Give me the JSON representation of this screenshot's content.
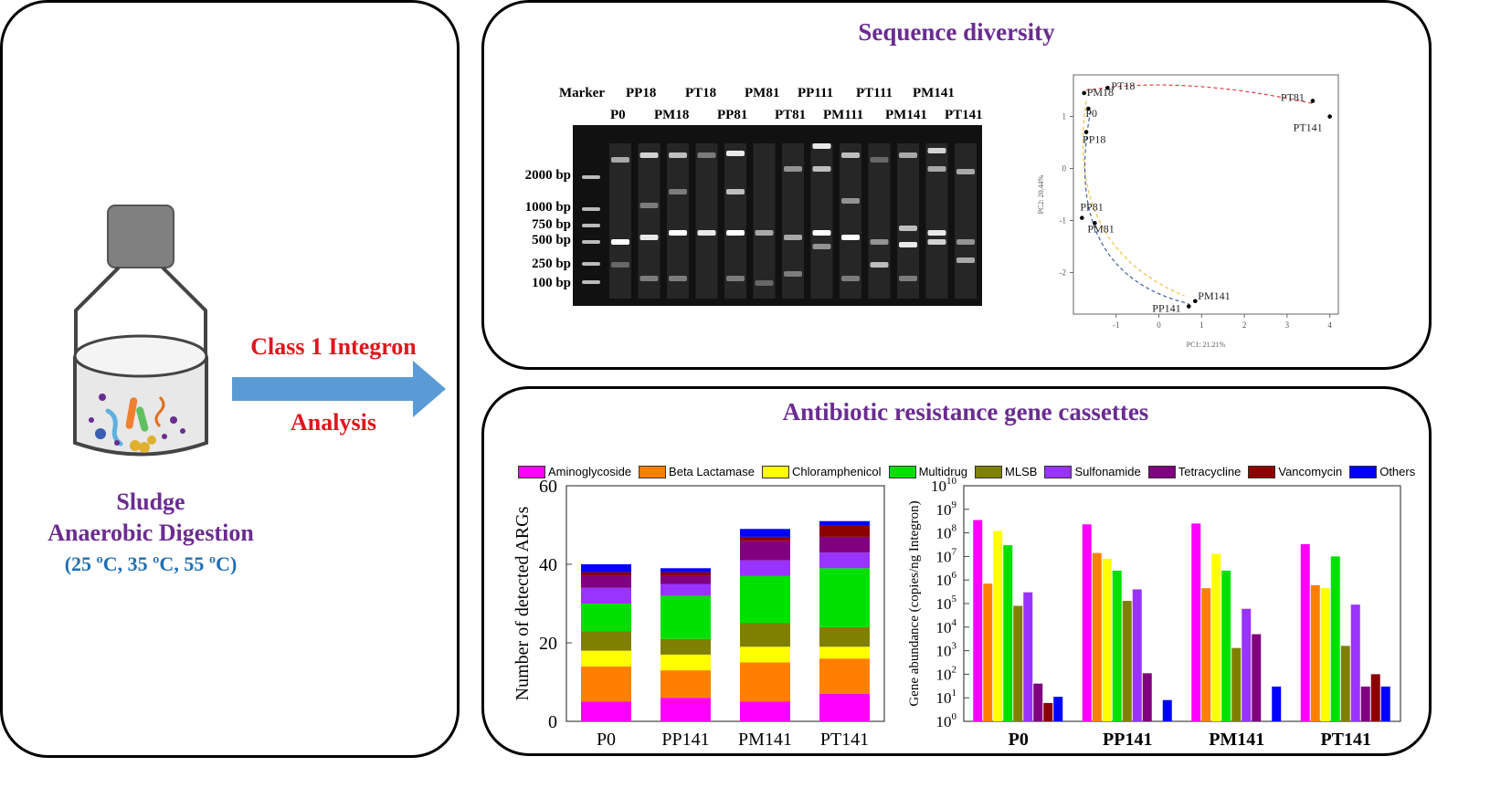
{
  "left": {
    "sludge_line1": "Sludge",
    "sludge_line2": "Anaerobic Digestion",
    "temps": "(25 ºC, 35 ºC, 55 ºC)",
    "arrow_top": "Class 1 Integron",
    "arrow_bottom": "Analysis",
    "colors": {
      "purple": "#6b2c91",
      "blue": "#1f6fb5",
      "red": "#e0151d",
      "arrow": "#5b9bd5"
    }
  },
  "sequence": {
    "title": "Sequence diversity",
    "gel": {
      "top_labels": [
        "Marker",
        "PP18",
        "PT18",
        "PM81",
        "PP111",
        "PT111",
        "PM141"
      ],
      "bottom_labels": [
        "P0",
        "PM18",
        "PP81",
        "PT81",
        "PM111",
        "PM141",
        "PT141"
      ],
      "bp_labels": [
        "2000 bp",
        "1000 bp",
        "750 bp",
        "500 bp",
        "250 bp",
        "100 bp"
      ]
    },
    "pca": {
      "xlabel": "PC1: 21.21%",
      "ylabel": "PC2: 20.44%",
      "xticks": [
        "-1",
        "0",
        "1",
        "2",
        "3",
        "4"
      ],
      "yticks": [
        "1",
        "0",
        "-1",
        "-2"
      ],
      "points": [
        {
          "label": "PT18",
          "x": -1.2,
          "y": 1.55
        },
        {
          "label": "PM18",
          "x": -1.75,
          "y": 1.45
        },
        {
          "label": "P0",
          "x": -1.65,
          "y": 1.15
        },
        {
          "label": "PP18",
          "x": -1.7,
          "y": 0.7
        },
        {
          "label": "PT81",
          "x": 3.6,
          "y": 1.3
        },
        {
          "label": "PT141",
          "x": 4.0,
          "y": 1.0
        },
        {
          "label": "PP81",
          "x": -1.8,
          "y": -0.95
        },
        {
          "label": "PM81",
          "x": -1.5,
          "y": -1.05
        },
        {
          "label": "PM141",
          "x": 0.85,
          "y": -2.55
        },
        {
          "label": "PP141",
          "x": 0.7,
          "y": -2.65
        }
      ]
    }
  },
  "arg": {
    "title": "Antibiotic resistance gene cassettes",
    "legend": [
      {
        "name": "Aminoglycoside",
        "color": "#ff00ff"
      },
      {
        "name": "Beta Lactamase",
        "color": "#ff8000"
      },
      {
        "name": "Chloramphenicol",
        "color": "#ffff00"
      },
      {
        "name": "Multidrug",
        "color": "#00e000"
      },
      {
        "name": "MLSB",
        "color": "#808000"
      },
      {
        "name": "Sulfonamide",
        "color": "#9933ff"
      },
      {
        "name": "Tetracycline",
        "color": "#800080"
      },
      {
        "name": "Vancomycin",
        "color": "#8b0000"
      },
      {
        "name": "Others",
        "color": "#0000ff"
      }
    ]
  },
  "chart_data": [
    {
      "type": "bar",
      "stacked": true,
      "ylabel": "Number of detected ARGs",
      "ylim": [
        0,
        60
      ],
      "yticks": [
        "0",
        "20",
        "40",
        "60"
      ],
      "categories": [
        "P0",
        "PP141",
        "PM141",
        "PT141"
      ],
      "series": [
        {
          "name": "Aminoglycoside",
          "values": [
            5,
            6,
            5,
            7
          ]
        },
        {
          "name": "Beta Lactamase",
          "values": [
            9,
            7,
            10,
            9
          ]
        },
        {
          "name": "Chloramphenicol",
          "values": [
            4,
            4,
            4,
            3
          ]
        },
        {
          "name": "MLSB",
          "values": [
            5,
            4,
            6,
            5
          ]
        },
        {
          "name": "Multidrug",
          "values": [
            7,
            11,
            12,
            15
          ]
        },
        {
          "name": "Sulfonamide",
          "values": [
            4,
            3,
            4,
            4
          ]
        },
        {
          "name": "Tetracycline",
          "values": [
            3,
            2,
            5,
            4
          ]
        },
        {
          "name": "Vancomycin",
          "values": [
            1,
            1,
            1,
            3
          ]
        },
        {
          "name": "Others",
          "values": [
            2,
            1,
            2,
            1
          ]
        }
      ]
    },
    {
      "type": "bar",
      "ylabel": "Gene abundance (copies/ng Integron)",
      "log_scale": true,
      "ylim": [
        1,
        10000000000
      ],
      "categories": [
        "P0",
        "PP141",
        "PM141",
        "PT141"
      ],
      "series": [
        {
          "name": "Aminoglycoside",
          "values": [
            350000000,
            230000000,
            250000000,
            33000000
          ]
        },
        {
          "name": "Beta Lactamase",
          "values": [
            700000,
            14000000,
            450000,
            600000
          ]
        },
        {
          "name": "Chloramphenicol",
          "values": [
            120000000,
            8000000,
            13000000,
            450000
          ]
        },
        {
          "name": "Multidrug",
          "values": [
            30000000,
            2500000,
            2500000,
            10000000
          ]
        },
        {
          "name": "MLSB",
          "values": [
            80000,
            130000,
            1300,
            1600
          ]
        },
        {
          "name": "Sulfonamide",
          "values": [
            300000,
            400000,
            60000,
            90000
          ]
        },
        {
          "name": "Tetracycline",
          "values": [
            40,
            110,
            5000,
            30
          ]
        },
        {
          "name": "Vancomycin",
          "values": [
            6,
            null,
            null,
            100
          ]
        },
        {
          "name": "Others",
          "values": [
            11,
            8,
            30,
            30
          ]
        }
      ]
    }
  ]
}
